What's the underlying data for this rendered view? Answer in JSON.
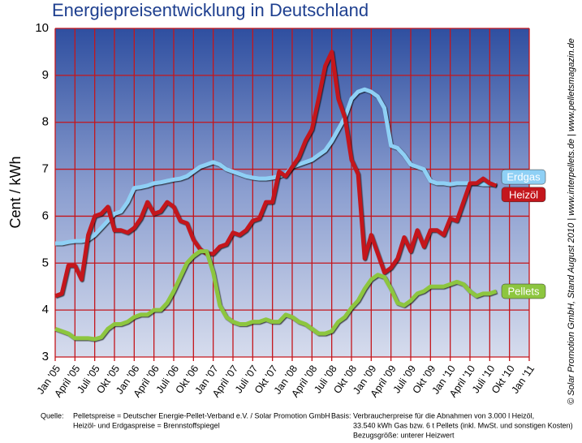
{
  "chart_data": {
    "type": "line",
    "title": "Energiepreisentwicklung in Deutschland",
    "y_label": "Cent / kWh",
    "categories": [
      "Jan '05",
      null,
      null,
      "April '05",
      null,
      null,
      "Juli '05",
      null,
      null,
      "Okt '05",
      null,
      null,
      "Jan '06",
      null,
      null,
      "April '06",
      null,
      null,
      "Juli '06",
      null,
      null,
      "Okt '06",
      null,
      null,
      "Jan '07",
      null,
      null,
      "April '07",
      null,
      null,
      "Juli '07",
      null,
      null,
      "Okt '07",
      null,
      null,
      "Jan '08",
      null,
      null,
      "April '08",
      null,
      null,
      "Juli '08",
      null,
      null,
      "Okt '08",
      null,
      null,
      "Jan '09",
      null,
      null,
      "April '09",
      null,
      null,
      "Juli '09",
      null,
      null,
      "Okt '09",
      null,
      null,
      "Jan '10",
      null,
      null,
      "April '10",
      null,
      null,
      "Juli '10",
      null,
      null,
      "Okt '10",
      null,
      null,
      "Jan '11"
    ],
    "series": [
      {
        "name": "Erdgas",
        "color": "#8fd0f5",
        "values": [
          5.42,
          5.42,
          5.45,
          5.47,
          5.47,
          5.5,
          5.6,
          5.75,
          5.9,
          6.05,
          6.1,
          6.3,
          6.6,
          6.62,
          6.65,
          6.7,
          6.72,
          6.75,
          6.78,
          6.8,
          6.85,
          6.95,
          7.05,
          7.1,
          7.15,
          7.1,
          7.0,
          6.95,
          6.9,
          6.85,
          6.82,
          6.8,
          6.8,
          6.82,
          6.85,
          6.9,
          7.05,
          7.1,
          7.15,
          7.2,
          7.3,
          7.4,
          7.6,
          7.85,
          8.1,
          8.5,
          8.65,
          8.7,
          8.65,
          8.55,
          8.3,
          7.5,
          7.45,
          7.3,
          7.1,
          7.05,
          7.0,
          6.75,
          6.7,
          6.7,
          6.68,
          6.7,
          6.7,
          6.7,
          6.7,
          6.68,
          6.68,
          6.68,
          null,
          null,
          null,
          null,
          null
        ]
      },
      {
        "name": "Heizöl",
        "color": "#c4161c",
        "values": [
          4.3,
          4.35,
          4.95,
          4.95,
          4.65,
          5.6,
          6.0,
          6.05,
          6.2,
          5.7,
          5.7,
          5.65,
          5.75,
          5.95,
          6.3,
          6.05,
          6.1,
          6.3,
          6.2,
          5.9,
          5.85,
          5.5,
          5.3,
          5.2,
          5.2,
          5.35,
          5.4,
          5.65,
          5.6,
          5.7,
          5.9,
          5.95,
          6.3,
          6.3,
          6.95,
          6.85,
          7.05,
          7.25,
          7.6,
          7.85,
          8.5,
          9.2,
          9.5,
          8.5,
          8.1,
          7.2,
          6.9,
          5.1,
          5.6,
          5.2,
          4.8,
          4.9,
          5.1,
          5.55,
          5.25,
          5.7,
          5.35,
          5.7,
          5.7,
          5.6,
          5.95,
          5.9,
          6.3,
          6.7,
          6.7,
          6.8,
          6.7,
          6.65,
          null,
          null,
          null,
          null,
          null
        ]
      },
      {
        "name": "Pellets",
        "color": "#8dc63f",
        "values": [
          3.6,
          3.55,
          3.5,
          3.4,
          3.4,
          3.4,
          3.38,
          3.42,
          3.6,
          3.7,
          3.7,
          3.75,
          3.85,
          3.9,
          3.9,
          4.0,
          4.0,
          4.15,
          4.4,
          4.7,
          5.0,
          5.15,
          5.25,
          5.25,
          4.8,
          4.1,
          3.85,
          3.75,
          3.7,
          3.7,
          3.75,
          3.75,
          3.8,
          3.75,
          3.75,
          3.9,
          3.85,
          3.75,
          3.7,
          3.6,
          3.5,
          3.5,
          3.55,
          3.75,
          3.85,
          4.05,
          4.2,
          4.45,
          4.65,
          4.75,
          4.7,
          4.45,
          4.15,
          4.1,
          4.2,
          4.35,
          4.4,
          4.5,
          4.5,
          4.5,
          4.55,
          4.6,
          4.55,
          4.4,
          4.3,
          4.35,
          4.35,
          4.4,
          null,
          null,
          null,
          null,
          null
        ]
      }
    ],
    "ylim": [
      3,
      10
    ],
    "yticks": [
      3,
      4,
      5,
      6,
      7,
      8,
      9,
      10
    ],
    "grid": true,
    "notes": {
      "source_label": "Quelle:",
      "source_lines": [
        "Pelletspreise = Deutscher Energie-Pellet-Verband e.V. / Solar Promotion GmbH",
        "Heizöl- und Erdgaspreise = Brennstoffspiegel"
      ],
      "basis_label": "Basis:",
      "basis_lines": [
        "Verbraucherpreise für die Abnahmen von 3.000 l Heizöl,",
        "33.540 kWh Gas bzw. 6 t Pellets (inkl. MwSt. und sonstigen Kosten)",
        "Bezugsgröße: unterer Heizwert"
      ],
      "side": "© Solar Promotion GmbH, Stand August 2010   |   www.interpellets.de   |   www.pelletsmagazin.de"
    }
  }
}
